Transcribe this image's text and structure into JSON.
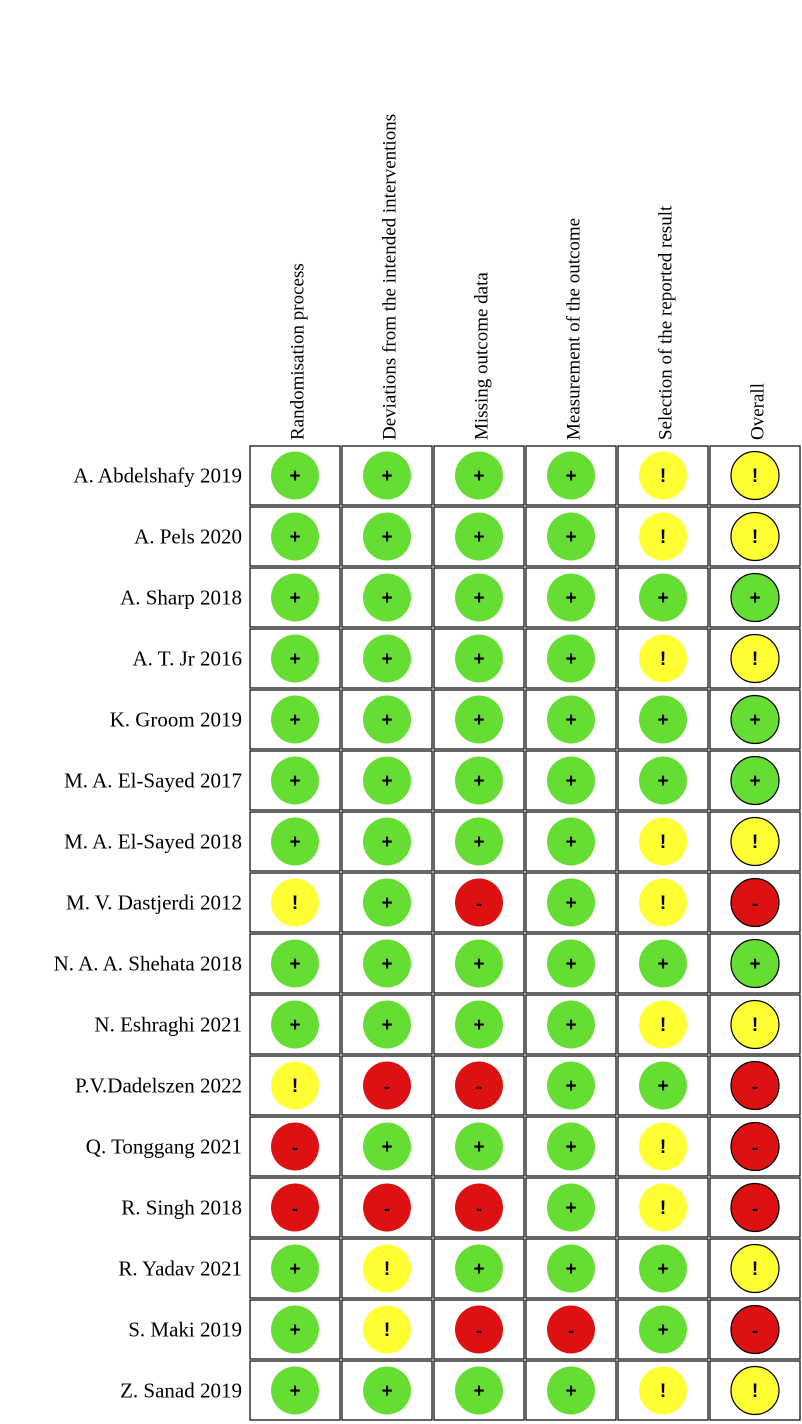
{
  "chart_data": {
    "type": "table",
    "columns": [
      "Randomisation process",
      "Deviations from the intended interventions",
      "Missing outcome data",
      "Measurement of the outcome",
      "Selection of the reported result",
      "Overall"
    ],
    "rows": [
      {
        "study": "A. Abdelshafy 2019",
        "ratings": [
          "+",
          "+",
          "+",
          "+",
          "!",
          "!"
        ]
      },
      {
        "study": "A. Pels 2020",
        "ratings": [
          "+",
          "+",
          "+",
          "+",
          "!",
          "!"
        ]
      },
      {
        "study": "A. Sharp 2018",
        "ratings": [
          "+",
          "+",
          "+",
          "+",
          "+",
          "+"
        ]
      },
      {
        "study": "A. T. Jr 2016",
        "ratings": [
          "+",
          "+",
          "+",
          "+",
          "!",
          "!"
        ]
      },
      {
        "study": "K. Groom 2019",
        "ratings": [
          "+",
          "+",
          "+",
          "+",
          "+",
          "+"
        ]
      },
      {
        "study": "M. A. El-Sayed 2017",
        "ratings": [
          "+",
          "+",
          "+",
          "+",
          "+",
          "+"
        ]
      },
      {
        "study": "M. A. El-Sayed 2018",
        "ratings": [
          "+",
          "+",
          "+",
          "+",
          "!",
          "!"
        ]
      },
      {
        "study": "M. V. Dastjerdi 2012",
        "ratings": [
          "!",
          "+",
          "-",
          "+",
          "!",
          "-"
        ]
      },
      {
        "study": "N. A. A. Shehata 2018",
        "ratings": [
          "+",
          "+",
          "+",
          "+",
          "+",
          "+"
        ]
      },
      {
        "study": "N. Eshraghi 2021",
        "ratings": [
          "+",
          "+",
          "+",
          "+",
          "!",
          "!"
        ]
      },
      {
        "study": "P.V.Dadelszen 2022",
        "ratings": [
          "!",
          "-",
          "-",
          "+",
          "+",
          "-"
        ]
      },
      {
        "study": "Q. Tonggang 2021",
        "ratings": [
          "-",
          "+",
          "+",
          "+",
          "!",
          "-"
        ]
      },
      {
        "study": "R. Singh 2018",
        "ratings": [
          "-",
          "-",
          "-",
          "+",
          "!",
          "-"
        ]
      },
      {
        "study": "R. Yadav 2021",
        "ratings": [
          "+",
          "!",
          "+",
          "+",
          "+",
          "!"
        ]
      },
      {
        "study": "S. Maki 2019",
        "ratings": [
          "+",
          "!",
          "-",
          "-",
          "+",
          "-"
        ]
      },
      {
        "study": "Z. Sanad 2019",
        "ratings": [
          "+",
          "+",
          "+",
          "+",
          "!",
          "!"
        ]
      }
    ],
    "colors": {
      "+": "#66dd33",
      "!": "#ffff33",
      "-": "#dd1111"
    }
  }
}
